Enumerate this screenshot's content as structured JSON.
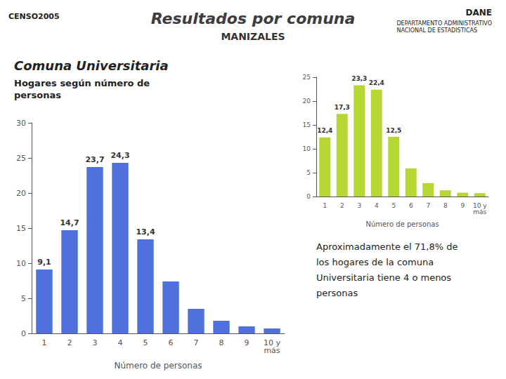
{
  "chart_data": [
    {
      "type": "bar",
      "title": "Resultados por comuna",
      "subtitle": "MANIZALES",
      "annotations": [
        "CENSO2005",
        "DANE",
        "DEPARTAMENTO ADMINISTRATIVO\nNACIONAL DE ESTADISTICAS",
        "Comuna Universitaria",
        "Hogares según número de\npersonas",
        "Aproximadamente el 71,8% de\nlos hogares de la comuna\nUniversitaria tiene 4 o menos\npersonas"
      ],
      "xlabel": "Número de personas",
      "categories": [
        "1",
        "2",
        "3",
        "4",
        "5",
        "6",
        "7",
        "8",
        "9",
        "10 y\nmás"
      ],
      "values": [
        9.1,
        14.7,
        23.7,
        24.3,
        13.4,
        7.4,
        3.5,
        1.8,
        1.0,
        0.7
      ],
      "value_labels": [
        "9,1",
        "14,7",
        "23,7",
        "24,3",
        "13,4",
        null,
        null,
        null,
        null,
        null
      ],
      "data_labels": true,
      "ylim": [
        0,
        30
      ],
      "yticks": [
        0,
        5,
        10,
        15,
        20,
        25,
        30
      ],
      "grid": false
    },
    {
      "type": "bar",
      "xlabel": "Número de personas",
      "categories": [
        "1",
        "2",
        "3",
        "4",
        "5",
        "6",
        "7",
        "8",
        "9",
        "10 y\nmás"
      ],
      "values": [
        12.4,
        17.3,
        23.3,
        22.4,
        12.5,
        5.9,
        2.8,
        1.3,
        0.8,
        0.7
      ],
      "value_labels": [
        "12,4",
        "17,3",
        "23,3",
        "22,4",
        "12,5",
        null,
        null,
        null,
        null,
        null
      ],
      "data_labels": true,
      "ylim": [
        0,
        25
      ],
      "yticks": [
        0,
        5,
        10,
        15,
        20,
        25
      ],
      "grid": false
    }
  ]
}
